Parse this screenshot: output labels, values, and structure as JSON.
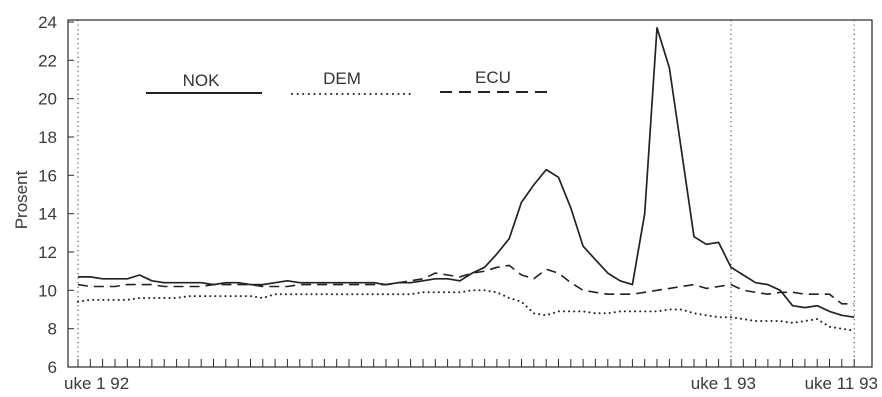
{
  "chart_data": {
    "type": "line",
    "ylabel": "Prosent",
    "ylim": [
      6,
      24
    ],
    "yticks": [
      6,
      8,
      10,
      12,
      14,
      16,
      18,
      20,
      22,
      24
    ],
    "grid": false,
    "legend": "top-left",
    "x": [
      [
        92,
        1
      ],
      [
        92,
        2
      ],
      [
        92,
        3
      ],
      [
        92,
        4
      ],
      [
        92,
        5
      ],
      [
        92,
        6
      ],
      [
        92,
        7
      ],
      [
        92,
        8
      ],
      [
        92,
        9
      ],
      [
        92,
        10
      ],
      [
        92,
        11
      ],
      [
        92,
        12
      ],
      [
        92,
        13
      ],
      [
        92,
        14
      ],
      [
        92,
        15
      ],
      [
        92,
        16
      ],
      [
        92,
        17
      ],
      [
        92,
        18
      ],
      [
        92,
        19
      ],
      [
        92,
        20
      ],
      [
        92,
        21
      ],
      [
        92,
        22
      ],
      [
        92,
        23
      ],
      [
        92,
        24
      ],
      [
        92,
        25
      ],
      [
        92,
        26
      ],
      [
        92,
        27
      ],
      [
        92,
        28
      ],
      [
        92,
        29
      ],
      [
        92,
        30
      ],
      [
        92,
        31
      ],
      [
        92,
        32
      ],
      [
        92,
        33
      ],
      [
        92,
        34
      ],
      [
        92,
        35
      ],
      [
        92,
        36
      ],
      [
        92,
        37
      ],
      [
        92,
        38
      ],
      [
        92,
        39
      ],
      [
        92,
        40
      ],
      [
        92,
        41
      ],
      [
        92,
        42
      ],
      [
        92,
        43
      ],
      [
        92,
        44
      ],
      [
        92,
        45
      ],
      [
        92,
        46
      ],
      [
        92,
        47
      ],
      [
        92,
        48
      ],
      [
        92,
        49
      ],
      [
        92,
        50
      ],
      [
        92,
        51
      ],
      [
        92,
        52
      ],
      [
        92,
        53
      ],
      [
        93,
        1
      ],
      [
        93,
        2
      ],
      [
        93,
        3
      ],
      [
        93,
        4
      ],
      [
        93,
        5
      ],
      [
        93,
        6
      ],
      [
        93,
        7
      ],
      [
        93,
        8
      ],
      [
        93,
        9
      ],
      [
        93,
        10
      ],
      [
        93,
        11
      ]
    ],
    "xticks": [
      {
        "label": "uke 1 92",
        "at": [
          92,
          1
        ]
      },
      {
        "label": "uke 1 93",
        "at": [
          93,
          1
        ]
      },
      {
        "label": "uke 11 93",
        "at": [
          93,
          11
        ]
      }
    ],
    "vertical_reference_lines": [
      [
        92,
        1
      ],
      [
        93,
        1
      ],
      [
        93,
        11
      ]
    ],
    "reference_line_style": "dotted",
    "series": [
      {
        "name": "NOK",
        "style": "solid",
        "color": "#222222",
        "values": [
          10.7,
          10.7,
          10.6,
          10.6,
          10.6,
          10.8,
          10.5,
          10.4,
          10.4,
          10.4,
          10.4,
          10.3,
          10.4,
          10.4,
          10.3,
          10.3,
          10.4,
          10.5,
          10.4,
          10.4,
          10.4,
          10.4,
          10.4,
          10.4,
          10.4,
          10.3,
          10.4,
          10.4,
          10.5,
          10.6,
          10.6,
          10.5,
          10.9,
          11.2,
          11.9,
          12.7,
          14.6,
          15.5,
          16.3,
          15.9,
          14.3,
          12.3,
          11.6,
          10.9,
          10.5,
          10.3,
          14.0,
          23.7,
          21.6,
          17.2,
          12.8,
          12.4,
          12.5,
          11.2,
          10.8,
          10.4,
          10.3,
          10.0,
          9.2,
          9.1,
          9.2,
          8.9,
          8.7,
          8.6
        ]
      },
      {
        "name": "DEM",
        "style": "dotted",
        "color": "#222222",
        "values": [
          9.4,
          9.5,
          9.5,
          9.5,
          9.5,
          9.6,
          9.6,
          9.6,
          9.6,
          9.7,
          9.7,
          9.7,
          9.7,
          9.7,
          9.7,
          9.6,
          9.8,
          9.8,
          9.8,
          9.8,
          9.8,
          9.8,
          9.8,
          9.8,
          9.8,
          9.8,
          9.8,
          9.8,
          9.9,
          9.9,
          9.9,
          9.9,
          10.0,
          10.0,
          9.9,
          9.6,
          9.4,
          8.8,
          8.7,
          8.9,
          8.9,
          8.9,
          8.8,
          8.8,
          8.9,
          8.9,
          8.9,
          8.9,
          9.0,
          9.0,
          8.8,
          8.7,
          8.6,
          8.6,
          8.5,
          8.4,
          8.4,
          8.4,
          8.3,
          8.4,
          8.5,
          8.1,
          8.0,
          7.9
        ]
      },
      {
        "name": "ECU",
        "style": "dashed",
        "color": "#222222",
        "values": [
          10.3,
          10.2,
          10.2,
          10.2,
          10.3,
          10.3,
          10.3,
          10.2,
          10.2,
          10.2,
          10.2,
          10.3,
          10.3,
          10.3,
          10.3,
          10.2,
          10.2,
          10.2,
          10.3,
          10.3,
          10.3,
          10.3,
          10.3,
          10.3,
          10.3,
          10.3,
          10.4,
          10.5,
          10.6,
          10.9,
          10.8,
          10.7,
          10.9,
          11.0,
          11.2,
          11.3,
          10.8,
          10.6,
          11.1,
          10.9,
          10.4,
          10.0,
          9.9,
          9.8,
          9.8,
          9.8,
          9.9,
          10.0,
          10.1,
          10.2,
          10.3,
          10.1,
          10.2,
          10.3,
          10.0,
          9.9,
          9.8,
          9.9,
          9.9,
          9.8,
          9.8,
          9.8,
          9.3,
          9.3
        ]
      }
    ]
  }
}
